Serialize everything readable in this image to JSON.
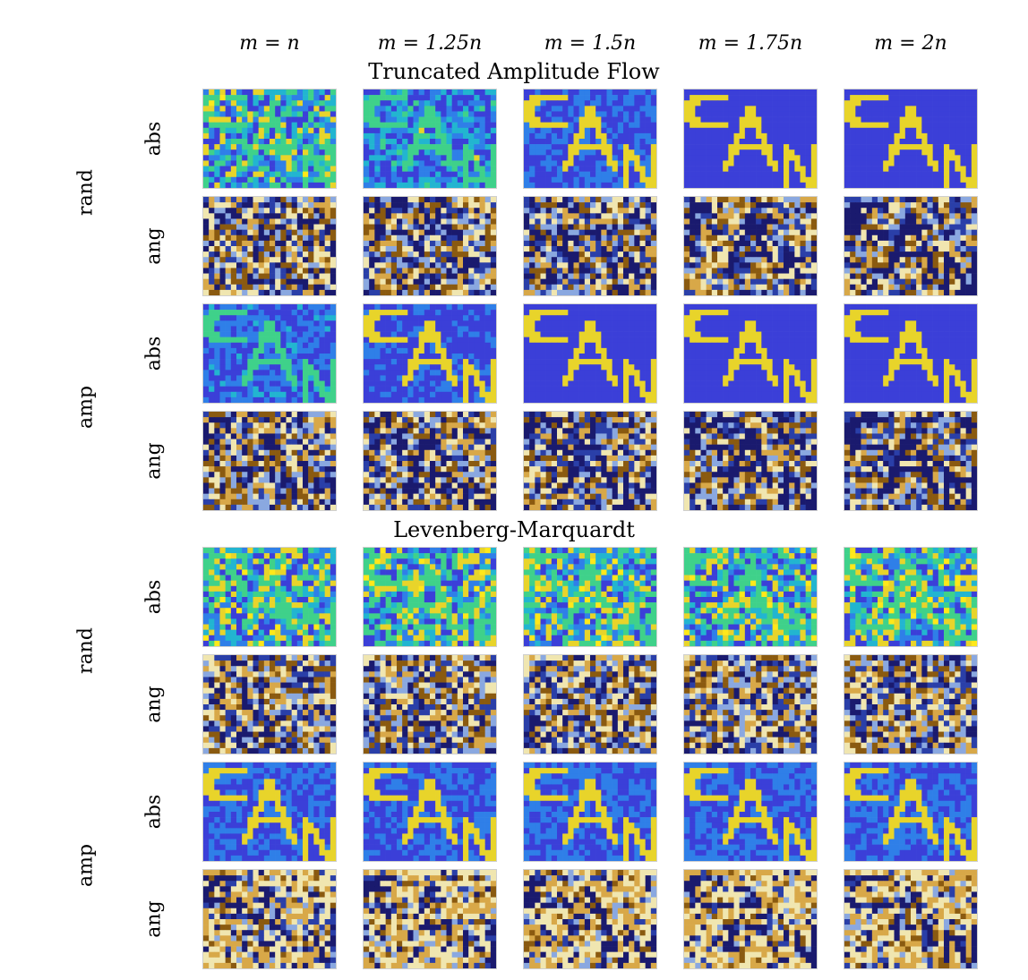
{
  "column_headers": [
    "m = n",
    "m = 1.25n",
    "m = 1.5n",
    "m = 1.75n",
    "m = 2n"
  ],
  "sections": [
    {
      "title": "Truncated Amplitude Flow",
      "groups": [
        {
          "label": "rand",
          "rows": [
            "abs",
            "ang"
          ]
        },
        {
          "label": "amp",
          "rows": [
            "abs",
            "ang"
          ]
        }
      ]
    },
    {
      "title": "Levenberg-Marquardt",
      "groups": [
        {
          "label": "rand",
          "rows": [
            "abs",
            "ang"
          ]
        },
        {
          "label": "amp",
          "rows": [
            "abs",
            "ang"
          ]
        }
      ]
    }
  ],
  "colormaps": {
    "abs": [
      "#3b3fd8",
      "#2f7fe8",
      "#22b5d0",
      "#3fd18a",
      "#e8d42a",
      "#ffe81a"
    ],
    "ang": [
      "#1a1a6e",
      "#2a3fa8",
      "#8aa8e0",
      "#f0e6b0",
      "#d8a848",
      "#8a5a10"
    ]
  }
}
